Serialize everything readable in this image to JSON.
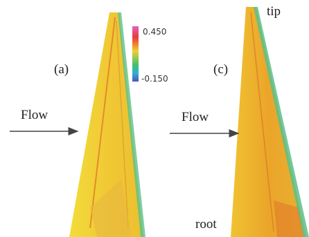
{
  "panels": [
    {
      "label": "(a)",
      "flow": "Flow"
    },
    {
      "label": "(c)",
      "flow": "Flow",
      "tip": "tip",
      "root": "root"
    }
  ],
  "colorbar": {
    "max_label": "0.450",
    "min_label": "-0.150"
  }
}
